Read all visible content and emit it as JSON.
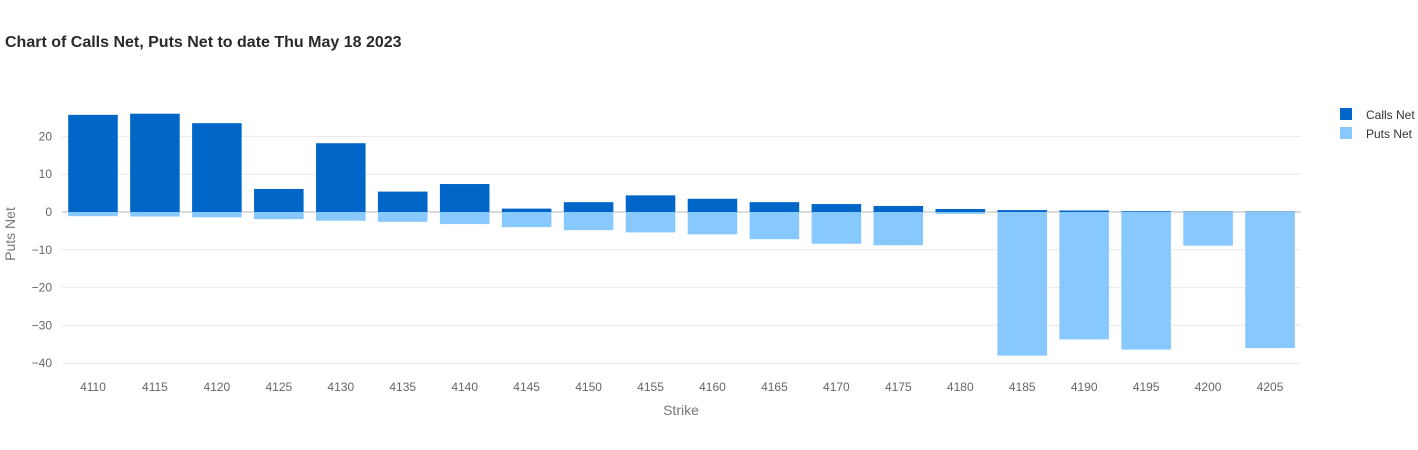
{
  "colors": {
    "calls": "#0066c8",
    "puts": "#87c8ff",
    "grid": "#e8e8e8",
    "zero_line": "#d0d0d0"
  },
  "chart_data": {
    "type": "bar",
    "title": "Chart of Calls Net, Puts Net to date Thu May 18 2023",
    "xlabel": "Strike",
    "ylabel": "Puts Net",
    "ylim": [
      -42,
      28
    ],
    "yticks": [
      20,
      10,
      0,
      -10,
      -20,
      -30,
      -40
    ],
    "ytick_labels": [
      "20",
      "10",
      "0",
      "−10",
      "−20",
      "−30",
      "−40"
    ],
    "grid": true,
    "legend_position": "top-right",
    "categories": [
      "4110",
      "4115",
      "4120",
      "4125",
      "4130",
      "4135",
      "4140",
      "4145",
      "4150",
      "4155",
      "4160",
      "4165",
      "4170",
      "4175",
      "4180",
      "4185",
      "4190",
      "4195",
      "4200",
      "4205"
    ],
    "series": [
      {
        "name": "Calls Net",
        "color": "#0066c8",
        "values": [
          25.7,
          26.0,
          23.5,
          6.1,
          18.2,
          5.4,
          7.4,
          0.9,
          2.6,
          4.4,
          3.5,
          2.6,
          2.1,
          1.6,
          0.8,
          0.5,
          0.4,
          0.2,
          0.1,
          0.1
        ]
      },
      {
        "name": "Puts Net",
        "color": "#87c8ff",
        "values": [
          -1.1,
          -1.2,
          -1.4,
          -1.9,
          -2.3,
          -2.6,
          -3.2,
          -4.0,
          -4.8,
          -5.4,
          -5.9,
          -7.2,
          -8.4,
          -8.8,
          -0.5,
          -38.0,
          -33.7,
          -36.4,
          -8.9,
          -36.0
        ]
      }
    ]
  }
}
